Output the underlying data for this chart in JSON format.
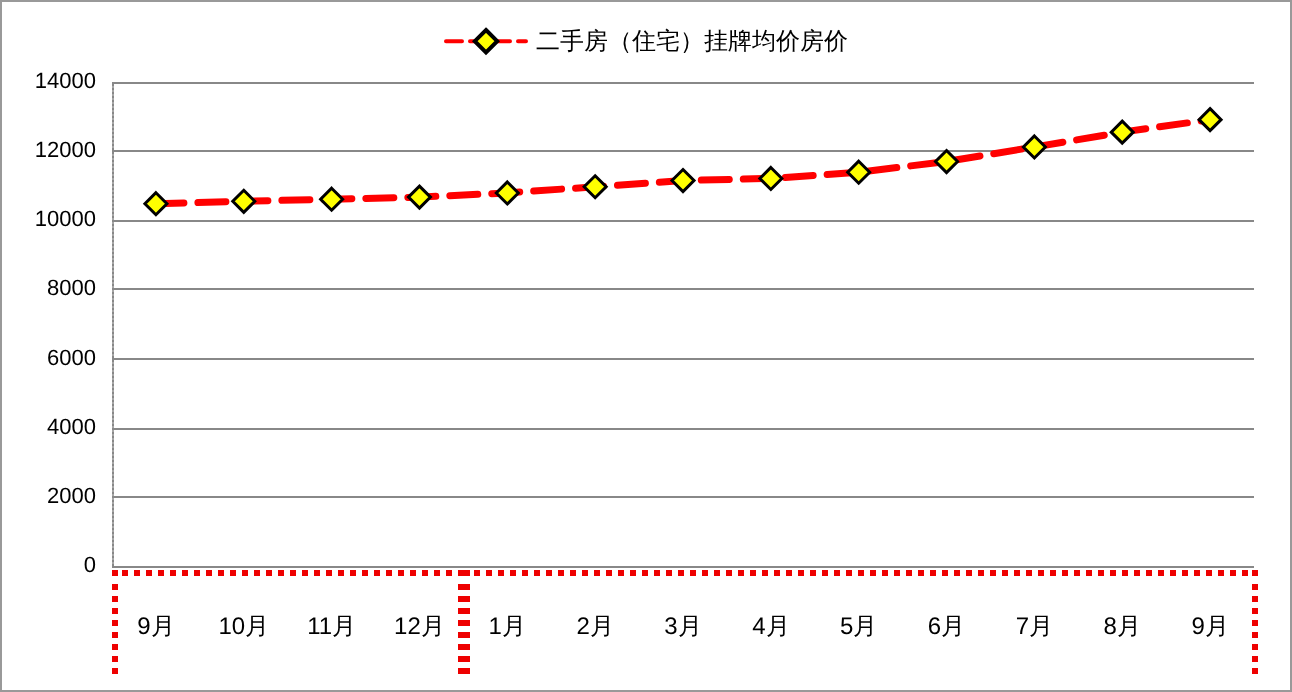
{
  "chart_data": {
    "type": "line",
    "categories": [
      "9月",
      "10月",
      "11月",
      "12月",
      "1月",
      "2月",
      "3月",
      "4月",
      "5月",
      "6月",
      "7月",
      "8月",
      "9月"
    ],
    "series": [
      {
        "name": "二手房（住宅）挂牌均价房价",
        "color": "#ff0000",
        "values": [
          10480,
          10550,
          10610,
          10670,
          10790,
          10970,
          11150,
          11210,
          11390,
          11700,
          12120,
          12550,
          12910
        ]
      }
    ],
    "ylim": [
      0,
      14000
    ],
    "yticks": [
      0,
      2000,
      4000,
      6000,
      8000,
      10000,
      12000,
      14000
    ],
    "grid": "y",
    "legend": "top",
    "marker": "diamond",
    "line_style": "dashed"
  }
}
